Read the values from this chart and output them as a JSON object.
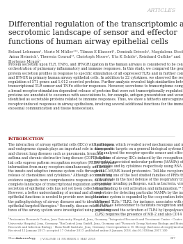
{
  "bg_color": "#ffffff",
  "header_text": "ARTICLES",
  "header_color": "#b0b0b0",
  "header_fontsize": 5.5,
  "title": "Differential regulation of the transcriptomic and\nsecrotomic landscape of sensor and effector\nfunctions of human airway epithelial cells",
  "title_fontsize": 7.8,
  "title_color": "#222222",
  "authors": "Roland Lehmann¹, Mario M Müller¹²³, Tilman E Klassert¹, Dominik Driesch¹, Magdalena Stock¹,\nAnina Heinrich¹, Theresia Conrad²³, Christoph Moore², Uta K Schiör¹, Reinhard Guthke² and\nHortense Mrugó¹",
  "authors_fontsize": 3.8,
  "authors_color": "#444444",
  "abstract_text": "Protein secretion upon TLR, TNFα, and IFNGR ligation in the human airways is considered to be central for the\norchestration of pulmonary inflammatory and immune responses. In this study, we compared the gene expression and\nprotein secretion profiles in response to specific stimulation of all expressed TLRs and in further comparison to TNFα\nand IFNGR in primary human airway epithelial cells. In addition to 22 cytokines, we observed the receptor-induced\nregulation of 571 genes and 1,012 secreted proteins. Further analysis revealed high similarities between the\ntranscriptional TLR sensor and TNFα effector responses. However, secretome to transcriptome comparisons showed\na broad receptor stimulation-dependent release of proteins that were not transcriptionally regulated. Many of these\nproteins are annotated to exosomes with associations to, for example, antigen presentation and wound-healing, or were\nidentified as secretable proteins related to immune responses. Thus, we show a hitherto unrecognized scope of\nreceptor-induced responses in airway epithelium, involving several additional functions for the immune response,\nexosomal communication and tissue homeostasis.",
  "abstract_fontsize": 3.5,
  "abstract_color": "#333333",
  "intro_header": "INTRODUCTION",
  "intro_header_fontsize": 4.0,
  "intro_header_color": "#8B0000",
  "intro_col1": "The interaction of airway epithelial cells (IECs) with pathogens\nand endogenous signals plays an important role in many acute\nand chronic lung diseases such as pneumonia, bronchial\nasthma and chronic obstructive lung disease (COPD). Epithe-\nlial cells express pattern recognition receptors (PRRs), integrate\ninformation from many receptors simultaneously, and bridge\nthe innate and adaptive immune system cells through the\nrelease of chemokines and cytokines.¹ Although accumulating\nevidence suggests more comprehensive responses, data of the\ncomplete landscape of transcriptional regulation and protein\nsecretion of epithelial cells has not yet been collected so far.\nHowever, a better understanding of normal and altered\nepithelial functions is needed to provide new insights into\nthe pathophysiology of airway diseases and to identify new\nepithelial-targeted therapies.² Recently, disease-related struc-\ntures of the airway system were investigated using proteomics",
  "intro_col2": "techniques, which revealed novel mechanisms and new\ntherapeutic targets on a general biological systems level.³⁴\n  We analyzed the receptor-specific sensor and effector\nfunctions of airway IECs induced by the recognition of\nmicrobial-associated molecular patterns (MAMPs) of micro-\norganisms and by cytokines respectively using RNA sequencing\nand LC-MS/MS based proteomics. Toll-like receptors (TLR)\nconstitute one of the best studied families of PRRs that play a\ncritical role in the host defense of the respiratory tract as they\nrecognize invading pathogens, such as bacteria, viruses and\nfungi leading to cell activation and inflammation.²⁴ The\nrepertoire for detecting particular MAMPs by the innate\nimmune system is expanded by the cooperation between\ndifferent TLRs.¹ TLR2, for instance, associates with either TLR1\nor TLR6 as heterodimer to facilitate recognition and induce\nsignaling, and the activation of TLR4 by lipopolysaccharides\n(LPS) requires the presence of MD-2 and also CD14 and LBP",
  "intro_fontsize": 3.3,
  "intro_color": "#333333",
  "footnotes": "¹Proteomics Research Centre, Jena University Hospital, Jena, Germany. ²Integrated Research and Treatment Centre - Centre for Sepsis Control and Care (CSCC), Jena\nUniversity Hospital, Jena, Germany. ³BioControl Jena GmbH, Jena, Germany and ⁴Research Group Systems Biology and Bioinformatics, Leibniz Institute for Natural Product\nResearch and Infection Biology - Hans Knöll Institute, Jena, Germany. Correspondence: H. Slevogt (hortense.slevogt@med.uni-jena.de)",
  "footnotes_fontsize": 2.8,
  "footnotes_color": "#555555",
  "received_text": "Received 12 January 2017; accepted 17 October 2017; published online 8 January 2018. doi:10.1038/mi.2017.100",
  "received_fontsize": 2.8,
  "journal_left": "Mucosal ",
  "journal_bold": "Immunology",
  "journal_right": " | VOLUME 11 NUMBER 3  MAY 2018",
  "journal_fontsize": 3.0,
  "journal_color": "#666666",
  "page_number": "627",
  "divider_color": "#cccccc"
}
